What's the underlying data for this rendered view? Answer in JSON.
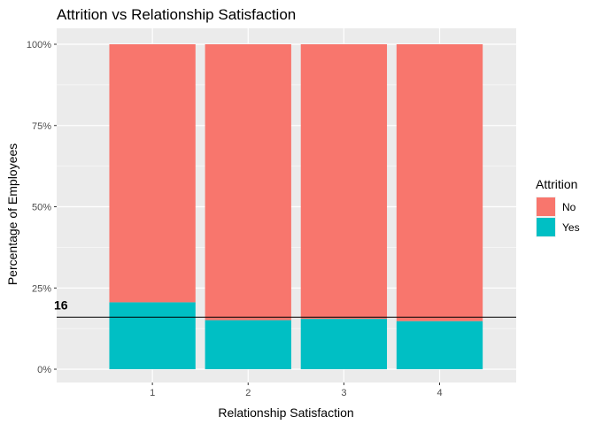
{
  "chart_data": {
    "type": "bar",
    "stacked": true,
    "percent": true,
    "title": "Attrition vs Relationship Satisfaction",
    "xlabel": "Relationship Satisfaction",
    "ylabel": "Percentage of Employees",
    "categories": [
      "1",
      "2",
      "3",
      "4"
    ],
    "series": [
      {
        "name": "No",
        "color": "#F8766D",
        "values": [
          79.4,
          84.9,
          84.5,
          85.2
        ]
      },
      {
        "name": "Yes",
        "color": "#00BFC4",
        "values": [
          20.6,
          15.1,
          15.5,
          14.8
        ]
      }
    ],
    "ylim": [
      0,
      100
    ],
    "yticks": [
      "0%",
      "25%",
      "50%",
      "75%",
      "100%"
    ],
    "ytick_values": [
      0,
      25,
      50,
      75,
      100
    ],
    "legend": {
      "title": "Attrition",
      "position": "right"
    },
    "reference_line": {
      "value": 16,
      "label": "16"
    },
    "panel_background": "#EBEBEB",
    "grid": true
  }
}
